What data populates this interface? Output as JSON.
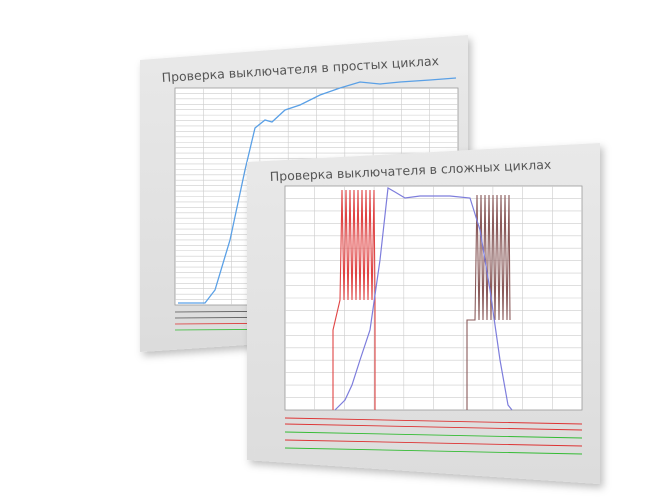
{
  "back_panel": {
    "title": "Проверка выключателя в простых циклах"
  },
  "front_panel": {
    "title": "Проверка выключателя в сложных циклах"
  }
}
